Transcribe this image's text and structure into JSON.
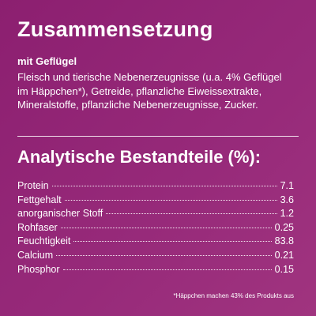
{
  "composition": {
    "title": "Zusammensetzung",
    "subtitle": "mit Geflügel",
    "lines": [
      "Fleisch und tierische Nebenerzeugnisse (u.a. 4% Geflügel",
      "im Häppchen*), Getreide, pflanzliche Eiweissextrakte,",
      "Mineralstoffe, pflanzliche Nebenerzeugnisse, Zucker."
    ]
  },
  "analysis": {
    "title": "Analytische Bestandteile (%):",
    "rows": [
      [
        "Protein",
        "7.1"
      ],
      [
        "Fettgehalt",
        "3.6"
      ],
      [
        "anorganischer Stoff",
        "1.2"
      ],
      [
        "Rohfaser",
        "0.25"
      ],
      [
        "Feuchtigkeit",
        "83.8"
      ],
      [
        "Calcium",
        "0.21"
      ],
      [
        "Phosphor",
        "0.15"
      ]
    ]
  },
  "footnote": "*Häppchen machen 43% des Produkts aus"
}
